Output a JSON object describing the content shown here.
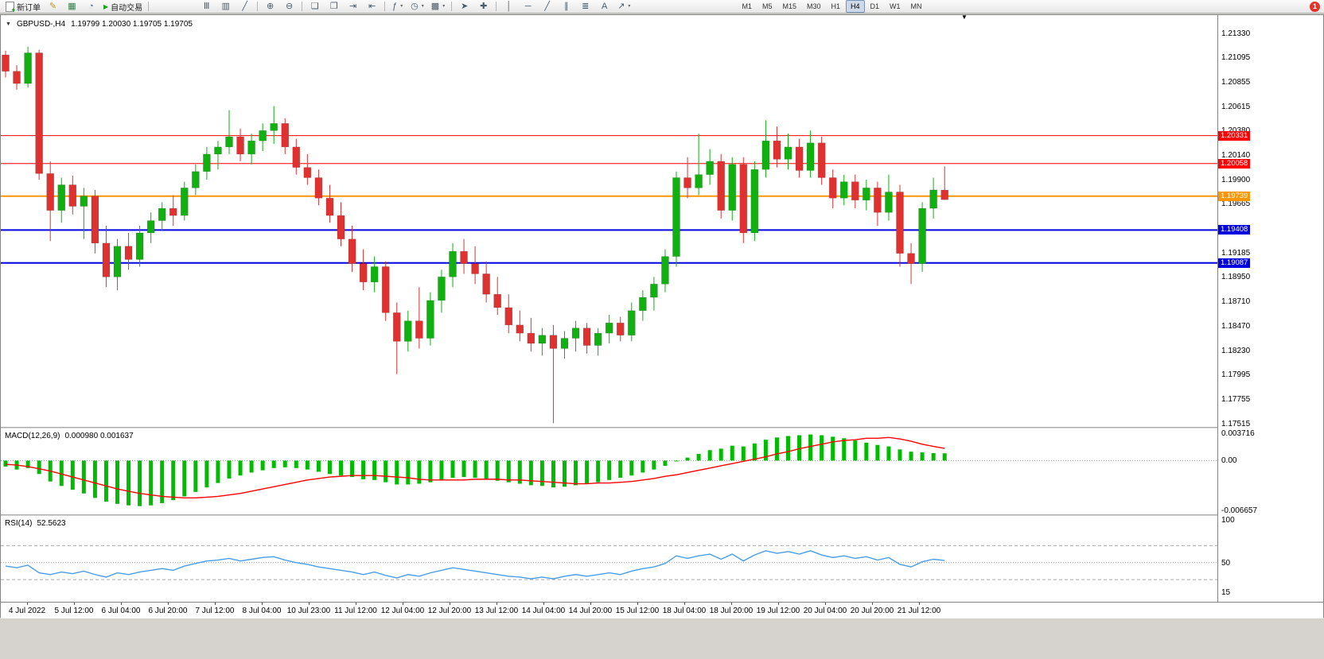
{
  "app": {
    "notification_count": "1"
  },
  "toolbar": {
    "new_order": {
      "label": "新订单"
    },
    "autotrading": {
      "label": "自动交易"
    },
    "quick_icons": [
      {
        "name": "metaeditor-icon",
        "glyph": "✎",
        "color": "#c8901a"
      },
      {
        "name": "market-watch-icon",
        "glyph": "▦",
        "color": "#2f7d46"
      },
      {
        "name": "history-center-icon",
        "glyph": "◔",
        "color": "#4a6ea9"
      }
    ],
    "chart_tools": [
      {
        "name": "bar-chart-icon",
        "glyph": "Ⅲ"
      },
      {
        "name": "candlestick-chart-icon",
        "glyph": "▥"
      },
      {
        "name": "line-chart-icon",
        "glyph": "╱"
      },
      {
        "sep": true
      },
      {
        "name": "zoom-in-icon",
        "glyph": "⊕"
      },
      {
        "name": "zoom-out-icon",
        "glyph": "⊖"
      },
      {
        "sep": true
      },
      {
        "name": "tile-windows-icon",
        "glyph": "❏"
      },
      {
        "name": "cascade-windows-icon",
        "glyph": "❐"
      },
      {
        "name": "auto-scroll-icon",
        "glyph": "⇥"
      },
      {
        "name": "chart-shift-icon",
        "glyph": "⇤"
      },
      {
        "sep": true
      },
      {
        "name": "indicators-icon",
        "glyph": "ƒ",
        "arrow": true
      },
      {
        "name": "periods-icon",
        "glyph": "◷",
        "arrow": true
      },
      {
        "name": "templates-icon",
        "glyph": "▩",
        "arrow": true
      },
      {
        "sep": true
      },
      {
        "name": "cursor-icon",
        "glyph": "➤"
      },
      {
        "name": "crosshair-icon",
        "glyph": "✚"
      },
      {
        "sep": true
      },
      {
        "name": "vertical-line-icon",
        "glyph": "│"
      },
      {
        "name": "horizontal-line-icon",
        "glyph": "─"
      },
      {
        "name": "trendline-icon",
        "glyph": "╱"
      },
      {
        "name": "channel-icon",
        "glyph": "∥"
      },
      {
        "name": "fibonacci-icon",
        "glyph": "≣"
      },
      {
        "name": "text-icon",
        "glyph": "A"
      },
      {
        "name": "arrows-icon",
        "glyph": "↗",
        "arrow": true
      }
    ],
    "timeframes": [
      "M1",
      "M5",
      "M15",
      "M30",
      "H1",
      "H4",
      "D1",
      "W1",
      "MN"
    ],
    "active_timeframe": "H4"
  },
  "chart": {
    "symbol": "GBPUSD-,H4",
    "ohlc_readout": "1.19799 1.20030 1.19705 1.19705",
    "up_color": "#0fb00f",
    "down_color": "#e03131"
  },
  "macd": {
    "label": "MACD(12,26,9)",
    "values": "0.000980 0.001637"
  },
  "rsi": {
    "label": "RSI(14)",
    "value": "52.5623"
  },
  "chart_data": [
    {
      "type": "candlestick",
      "name": "GBPUSD-,H4",
      "ylim": [
        1.17484,
        1.21509
      ],
      "y_tick_labels": [
        "1.21330",
        "1.21095",
        "1.20855",
        "1.20615",
        "1.20380",
        "1.20140",
        "1.19900",
        "1.19665",
        "1.19425",
        "1.19185",
        "1.18950",
        "1.18710",
        "1.18470",
        "1.18230",
        "1.17995",
        "1.17755",
        "1.17515"
      ],
      "levels": [
        {
          "label": "1.20331",
          "value": 1.20331,
          "color": "#ff0000",
          "width": 1
        },
        {
          "label": "1.20058",
          "value": 1.20058,
          "color": "#ff0000",
          "width": 1
        },
        {
          "label": "1.19739",
          "value": 1.19739,
          "color": "#ff9500",
          "width": 2
        },
        {
          "label": "1.19408",
          "value": 1.19408,
          "color": "#0000e0",
          "width": 2
        },
        {
          "label": "1.19087",
          "value": 1.19087,
          "color": "#0000e0",
          "width": 2
        }
      ],
      "x_tick_labels": [
        "4 Jul 2022",
        "5 Jul 12:00",
        "6 Jul 04:00",
        "6 Jul 20:00",
        "7 Jul 12:00",
        "8 Jul 04:00",
        "10 Jul 23:00",
        "11 Jul 12:00",
        "12 Jul 04:00",
        "12 Jul 20:00",
        "13 Jul 12:00",
        "14 Jul 04:00",
        "14 Jul 20:00",
        "15 Jul 12:00",
        "18 Jul 04:00",
        "18 Jul 20:00",
        "19 Jul 12:00",
        "20 Jul 04:00",
        "20 Jul 20:00",
        "21 Jul 12:00"
      ],
      "candles_ohlc": [
        [
          1.2112,
          1.2116,
          1.209,
          1.2096
        ],
        [
          1.2096,
          1.2102,
          1.2078,
          1.2084
        ],
        [
          1.2084,
          1.212,
          1.208,
          1.2114
        ],
        [
          1.2114,
          1.2117,
          1.199,
          1.1996
        ],
        [
          1.1996,
          1.2008,
          1.193,
          1.196
        ],
        [
          1.196,
          1.1992,
          1.1948,
          1.1985
        ],
        [
          1.1985,
          1.1994,
          1.1956,
          1.1964
        ],
        [
          1.1964,
          1.1982,
          1.1932,
          1.1974
        ],
        [
          1.1974,
          1.198,
          1.1918,
          1.1928
        ],
        [
          1.1928,
          1.1945,
          1.1885,
          1.1895
        ],
        [
          1.1895,
          1.1932,
          1.1882,
          1.1925
        ],
        [
          1.1925,
          1.1938,
          1.1902,
          1.1912
        ],
        [
          1.1912,
          1.1945,
          1.1905,
          1.1938
        ],
        [
          1.1938,
          1.1958,
          1.1928,
          1.195
        ],
        [
          1.195,
          1.1968,
          1.194,
          1.1962
        ],
        [
          1.1962,
          1.1975,
          1.1945,
          1.1955
        ],
        [
          1.1955,
          1.1988,
          1.195,
          1.1982
        ],
        [
          1.1982,
          1.2005,
          1.1975,
          1.1998
        ],
        [
          1.1998,
          1.2022,
          1.199,
          1.2015
        ],
        [
          1.2015,
          1.2028,
          1.2,
          1.2022
        ],
        [
          1.2022,
          1.2058,
          1.2015,
          1.2032
        ],
        [
          1.2032,
          1.204,
          1.2008,
          1.2015
        ],
        [
          1.2015,
          1.2035,
          1.2005,
          1.2028
        ],
        [
          1.2028,
          1.2045,
          1.2018,
          1.2038
        ],
        [
          1.2038,
          1.2062,
          1.2025,
          1.2045
        ],
        [
          1.2045,
          1.205,
          1.2015,
          1.2022
        ],
        [
          1.2022,
          1.203,
          1.1995,
          1.2002
        ],
        [
          1.2002,
          1.2015,
          1.1985,
          1.1992
        ],
        [
          1.1992,
          1.2,
          1.1965,
          1.1972
        ],
        [
          1.1972,
          1.1985,
          1.1948,
          1.1955
        ],
        [
          1.1955,
          1.1968,
          1.1925,
          1.1932
        ],
        [
          1.1932,
          1.1945,
          1.19,
          1.1908
        ],
        [
          1.1908,
          1.1922,
          1.1882,
          1.189
        ],
        [
          1.189,
          1.1915,
          1.188,
          1.1905
        ],
        [
          1.1905,
          1.191,
          1.1852,
          1.186
        ],
        [
          1.186,
          1.187,
          1.18,
          1.1832
        ],
        [
          1.1832,
          1.1862,
          1.1822,
          1.1852
        ],
        [
          1.1852,
          1.1885,
          1.1825,
          1.1835
        ],
        [
          1.1835,
          1.188,
          1.1828,
          1.1872
        ],
        [
          1.1872,
          1.1902,
          1.186,
          1.1895
        ],
        [
          1.1895,
          1.1928,
          1.1885,
          1.192
        ],
        [
          1.192,
          1.1932,
          1.1898,
          1.1908
        ],
        [
          1.1908,
          1.1925,
          1.1888,
          1.1898
        ],
        [
          1.1898,
          1.191,
          1.187,
          1.1878
        ],
        [
          1.1878,
          1.1895,
          1.1858,
          1.1865
        ],
        [
          1.1865,
          1.1878,
          1.184,
          1.1848
        ],
        [
          1.1848,
          1.1862,
          1.1832,
          1.184
        ],
        [
          1.184,
          1.1855,
          1.1822,
          1.183
        ],
        [
          1.183,
          1.1845,
          1.1818,
          1.1838
        ],
        [
          1.1838,
          1.1848,
          1.1752,
          1.1825
        ],
        [
          1.1825,
          1.1842,
          1.1815,
          1.1835
        ],
        [
          1.1835,
          1.1852,
          1.1822,
          1.1845
        ],
        [
          1.1845,
          1.185,
          1.182,
          1.1828
        ],
        [
          1.1828,
          1.1845,
          1.1818,
          1.184
        ],
        [
          1.184,
          1.1858,
          1.183,
          1.185
        ],
        [
          1.185,
          1.1856,
          1.1832,
          1.1838
        ],
        [
          1.1838,
          1.187,
          1.1832,
          1.1862
        ],
        [
          1.1862,
          1.1882,
          1.1852,
          1.1875
        ],
        [
          1.1875,
          1.1895,
          1.1862,
          1.1888
        ],
        [
          1.1888,
          1.1922,
          1.188,
          1.1915
        ],
        [
          1.1915,
          1.1998,
          1.1905,
          1.1992
        ],
        [
          1.1992,
          1.2012,
          1.1972,
          1.1982
        ],
        [
          1.1982,
          1.2035,
          1.1975,
          1.1995
        ],
        [
          1.1995,
          1.202,
          1.1985,
          1.2008
        ],
        [
          1.2008,
          1.2015,
          1.1952,
          1.196
        ],
        [
          1.196,
          1.2012,
          1.195,
          1.2005
        ],
        [
          1.2005,
          1.2012,
          1.1928,
          1.1938
        ],
        [
          1.1938,
          1.2008,
          1.193,
          1.2
        ],
        [
          1.2,
          1.2048,
          1.1992,
          1.2028
        ],
        [
          1.2028,
          1.2042,
          1.2002,
          1.201
        ],
        [
          1.201,
          1.2035,
          1.2,
          1.2022
        ],
        [
          1.2022,
          1.203,
          1.1992,
          1.1999
        ],
        [
          1.1999,
          1.2038,
          1.1992,
          1.2026
        ],
        [
          1.2026,
          1.2032,
          1.1985,
          1.1992
        ],
        [
          1.1992,
          1.2,
          1.1962,
          1.1972
        ],
        [
          1.1972,
          1.1995,
          1.1965,
          1.1988
        ],
        [
          1.1988,
          1.1995,
          1.1962,
          1.197
        ],
        [
          1.197,
          1.199,
          1.196,
          1.1982
        ],
        [
          1.1982,
          1.1988,
          1.1945,
          1.1958
        ],
        [
          1.1958,
          1.1995,
          1.195,
          1.1978
        ],
        [
          1.1978,
          1.1985,
          1.1905,
          1.1918
        ],
        [
          1.1918,
          1.1928,
          1.1888,
          1.1908
        ],
        [
          1.1908,
          1.1968,
          1.19,
          1.1962
        ],
        [
          1.1962,
          1.1992,
          1.1952,
          1.198
        ],
        [
          1.19799,
          1.2003,
          1.19705,
          1.19705
        ]
      ]
    },
    {
      "type": "macd",
      "name": "MACD(12,26,9)",
      "ylim": [
        -0.0072,
        0.0042
      ],
      "y_tick_labels": [
        "0.003716",
        "0.00",
        "-0.006657"
      ],
      "histogram_color": "#00bb00",
      "signal_color": "#ff0000",
      "histogram": [
        -0.0008,
        -0.0012,
        -0.001,
        -0.0018,
        -0.0028,
        -0.0034,
        -0.0039,
        -0.0044,
        -0.005,
        -0.0055,
        -0.0058,
        -0.006,
        -0.0061,
        -0.006,
        -0.0057,
        -0.0053,
        -0.0048,
        -0.0042,
        -0.0036,
        -0.003,
        -0.0024,
        -0.002,
        -0.0016,
        -0.0013,
        -0.001,
        -0.0009,
        -0.001,
        -0.0012,
        -0.0015,
        -0.0018,
        -0.002,
        -0.0022,
        -0.0025,
        -0.0026,
        -0.0029,
        -0.0032,
        -0.0032,
        -0.0031,
        -0.0029,
        -0.0026,
        -0.0023,
        -0.0022,
        -0.0023,
        -0.0025,
        -0.0027,
        -0.0029,
        -0.0031,
        -0.0033,
        -0.0034,
        -0.0036,
        -0.0035,
        -0.0033,
        -0.0031,
        -0.0029,
        -0.0026,
        -0.0023,
        -0.002,
        -0.0016,
        -0.0012,
        -0.0007,
        -0.0001,
        0.0004,
        0.0009,
        0.0014,
        0.0016,
        0.002,
        0.0019,
        0.0023,
        0.0028,
        0.0031,
        0.0033,
        0.0034,
        0.0035,
        0.0034,
        0.0032,
        0.003,
        0.0027,
        0.0024,
        0.0021,
        0.0019,
        0.0015,
        0.0012,
        0.0011,
        0.001,
        0.00098
      ],
      "signal": [
        -0.0005,
        -0.0006,
        -0.0008,
        -0.0011,
        -0.0014,
        -0.0018,
        -0.0022,
        -0.0026,
        -0.003,
        -0.0034,
        -0.0038,
        -0.0041,
        -0.0044,
        -0.0046,
        -0.0048,
        -0.0049,
        -0.005,
        -0.005,
        -0.0049,
        -0.0048,
        -0.0046,
        -0.0044,
        -0.0041,
        -0.0038,
        -0.0035,
        -0.0032,
        -0.0029,
        -0.0026,
        -0.0024,
        -0.0022,
        -0.0021,
        -0.002,
        -0.002,
        -0.002,
        -0.0021,
        -0.0022,
        -0.0023,
        -0.0025,
        -0.0026,
        -0.0026,
        -0.0026,
        -0.0026,
        -0.0025,
        -0.0025,
        -0.0025,
        -0.0026,
        -0.0026,
        -0.0027,
        -0.0028,
        -0.0029,
        -0.003,
        -0.0031,
        -0.0031,
        -0.003,
        -0.003,
        -0.0029,
        -0.0028,
        -0.0026,
        -0.0024,
        -0.0021,
        -0.0019,
        -0.0016,
        -0.0013,
        -0.001,
        -0.0007,
        -0.0004,
        -0.0001,
        0.0002,
        0.0005,
        0.0009,
        0.0012,
        0.0016,
        0.0019,
        0.0022,
        0.0025,
        0.0027,
        0.0028,
        0.003,
        0.003,
        0.0031,
        0.0029,
        0.0026,
        0.0022,
        0.0019,
        0.001637
      ]
    },
    {
      "type": "line",
      "name": "RSI(14)",
      "ylim": [
        4,
        104
      ],
      "y_tick_labels": [
        "100",
        "50",
        "15"
      ],
      "levels_dashed": [
        70,
        30
      ],
      "levels_dotted": [
        50
      ],
      "line_color": "#4a9ee8",
      "values": [
        46,
        44,
        47,
        38,
        36,
        39,
        37,
        40,
        36,
        33,
        38,
        36,
        39,
        41,
        43,
        41,
        46,
        49,
        52,
        53,
        55,
        52,
        54,
        56,
        57,
        53,
        50,
        48,
        45,
        43,
        41,
        39,
        36,
        39,
        35,
        32,
        36,
        34,
        38,
        41,
        44,
        42,
        40,
        38,
        36,
        34,
        33,
        31,
        33,
        31,
        34,
        36,
        34,
        36,
        38,
        36,
        40,
        43,
        45,
        49,
        58,
        55,
        58,
        60,
        54,
        60,
        52,
        59,
        64,
        61,
        63,
        60,
        64,
        59,
        56,
        58,
        55,
        57,
        53,
        56,
        48,
        45,
        51,
        54,
        52.56
      ]
    }
  ]
}
